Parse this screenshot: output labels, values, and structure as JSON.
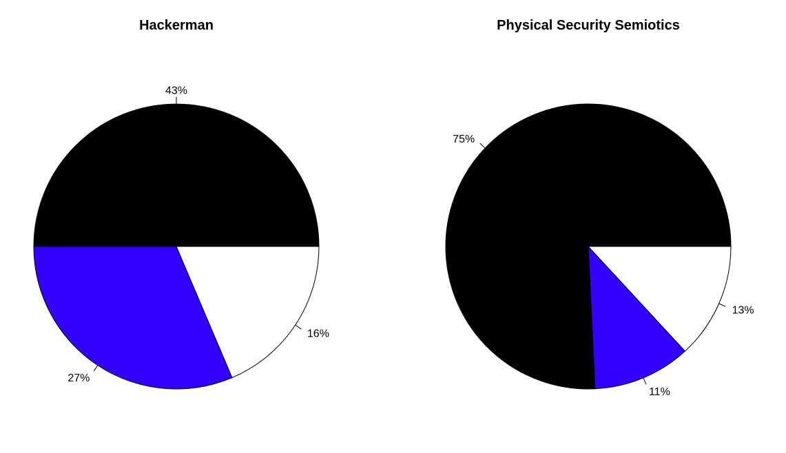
{
  "chart_data": [
    {
      "type": "pie",
      "title": "Hackerman",
      "slices": [
        {
          "value": 43,
          "label": "43%",
          "color": "#000000"
        },
        {
          "value": 27,
          "label": "27%",
          "color": "#3300ff"
        },
        {
          "value": 16,
          "label": "16%",
          "color": "#ffffff"
        }
      ]
    },
    {
      "type": "pie",
      "title": "Physical Security Semiotics",
      "slices": [
        {
          "value": 75,
          "label": "75%",
          "color": "#000000"
        },
        {
          "value": 11,
          "label": "11%",
          "color": "#3300ff"
        },
        {
          "value": 13,
          "label": "13%",
          "color": "#ffffff"
        }
      ]
    }
  ]
}
